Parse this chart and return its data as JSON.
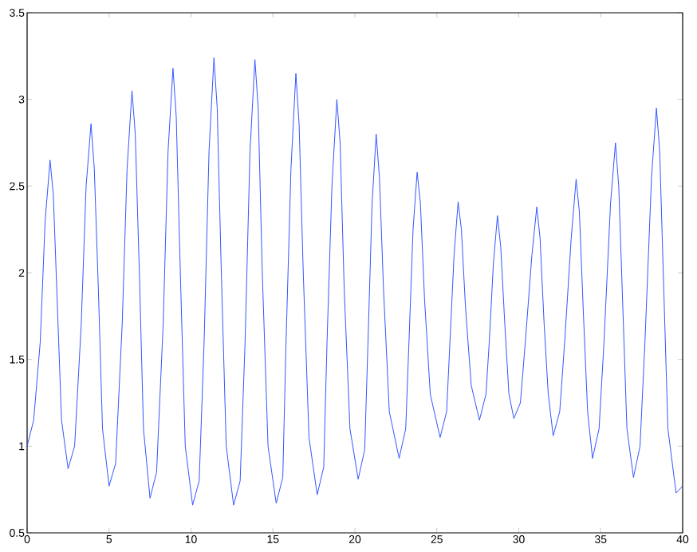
{
  "chart_data": {
    "type": "line",
    "xlim": [
      0,
      40
    ],
    "ylim": [
      0.5,
      3.5
    ],
    "xticks": [
      0,
      5,
      10,
      15,
      20,
      25,
      30,
      35,
      40
    ],
    "yticks": [
      0.5,
      1,
      1.5,
      2,
      2.5,
      3,
      3.5
    ],
    "grid": false,
    "marker": "none",
    "line_style": "solid",
    "series": [
      {
        "color": "#3355ff",
        "x": [
          0,
          0.4,
          0.8,
          1.1,
          1.4,
          1.6,
          1.85,
          2.1,
          2.5,
          2.9,
          3.3,
          3.6,
          3.9,
          4.1,
          4.35,
          4.6,
          5.0,
          5.4,
          5.8,
          6.1,
          6.4,
          6.6,
          6.85,
          7.1,
          7.5,
          7.9,
          8.3,
          8.6,
          8.9,
          9.1,
          9.35,
          9.65,
          10.1,
          10.5,
          10.8,
          11.1,
          11.4,
          11.6,
          11.85,
          12.15,
          12.6,
          13.0,
          13.3,
          13.6,
          13.9,
          14.1,
          14.35,
          14.7,
          15.2,
          15.6,
          15.8,
          16.1,
          16.4,
          16.6,
          16.85,
          17.2,
          17.7,
          18.1,
          18.3,
          18.6,
          18.9,
          19.1,
          19.35,
          19.7,
          20.2,
          20.6,
          20.8,
          21.05,
          21.3,
          21.5,
          21.75,
          22.1,
          22.7,
          23.1,
          23.3,
          23.55,
          23.8,
          24.0,
          24.25,
          24.6,
          25.2,
          25.6,
          25.8,
          26.05,
          26.3,
          26.5,
          26.75,
          27.1,
          27.6,
          28.0,
          28.2,
          28.45,
          28.7,
          28.9,
          29.15,
          29.4,
          29.7,
          30.1,
          30.4,
          30.8,
          31.1,
          31.3,
          31.55,
          31.8,
          32.1,
          32.5,
          32.8,
          33.2,
          33.5,
          33.7,
          33.95,
          34.2,
          34.5,
          34.9,
          35.2,
          35.6,
          35.9,
          36.1,
          36.35,
          36.6,
          37.0,
          37.4,
          37.7,
          38.1,
          38.4,
          38.6,
          38.85,
          39.1,
          39.6,
          40.0
        ],
        "values": [
          1.0,
          1.15,
          1.6,
          2.3,
          2.65,
          2.45,
          1.8,
          1.15,
          0.87,
          1.0,
          1.7,
          2.5,
          2.86,
          2.6,
          1.9,
          1.1,
          0.77,
          0.9,
          1.7,
          2.6,
          3.05,
          2.8,
          2.0,
          1.1,
          0.7,
          0.85,
          1.7,
          2.7,
          3.18,
          2.9,
          2.0,
          1.0,
          0.66,
          0.8,
          1.6,
          2.7,
          3.24,
          2.95,
          2.0,
          1.0,
          0.66,
          0.8,
          1.6,
          2.7,
          3.23,
          2.95,
          2.0,
          1.0,
          0.67,
          0.82,
          1.6,
          2.6,
          3.15,
          2.85,
          2.0,
          1.05,
          0.72,
          0.88,
          1.6,
          2.5,
          3.0,
          2.75,
          1.9,
          1.1,
          0.81,
          0.98,
          1.6,
          2.4,
          2.8,
          2.55,
          1.9,
          1.2,
          0.93,
          1.1,
          1.6,
          2.25,
          2.58,
          2.4,
          1.85,
          1.3,
          1.05,
          1.2,
          1.6,
          2.1,
          2.41,
          2.25,
          1.8,
          1.35,
          1.15,
          1.3,
          1.6,
          2.05,
          2.33,
          2.15,
          1.7,
          1.3,
          1.16,
          1.25,
          1.6,
          2.1,
          2.38,
          2.2,
          1.7,
          1.3,
          1.06,
          1.2,
          1.6,
          2.2,
          2.54,
          2.35,
          1.75,
          1.2,
          0.93,
          1.1,
          1.6,
          2.4,
          2.75,
          2.5,
          1.8,
          1.1,
          0.82,
          1.0,
          1.6,
          2.55,
          2.95,
          2.7,
          1.9,
          1.1,
          0.73,
          0.77
        ]
      }
    ]
  }
}
